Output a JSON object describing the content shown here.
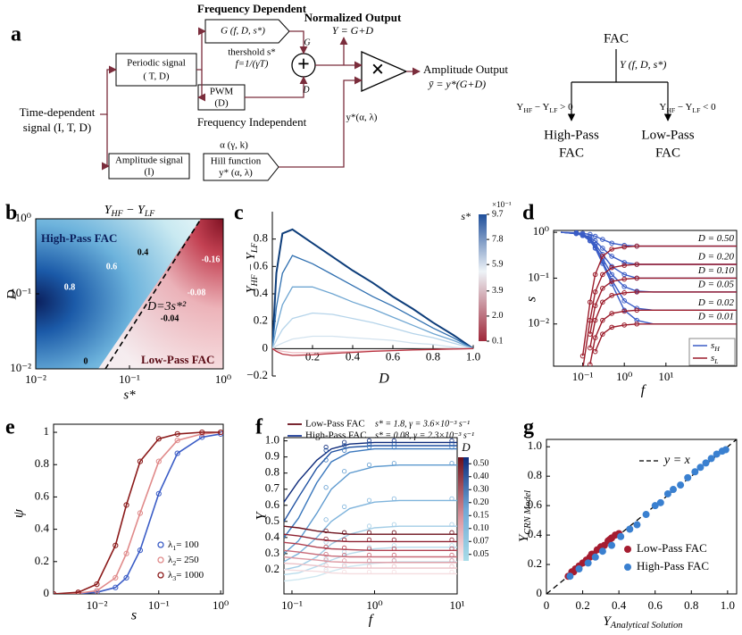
{
  "diagram": {
    "labels": [
      "a",
      "Frequency Dependent",
      "Normalized Output",
      "Y = G+D",
      "G (f, D, s*)",
      "thershold s*",
      "f=1/(γT)",
      "G",
      "Periodic signal",
      "( T, D)",
      "PWM",
      "(D)",
      "Frequency Independent",
      "D",
      "Time-dependent",
      "signal (I, T, D)",
      "Amplitude signal",
      "(I)",
      "α (γ, k)",
      "Hill function",
      "y* (α, λ)",
      "y*(α, λ)",
      "Amplitude Output",
      "ȳ = y*(G+D)",
      "+",
      "×",
      "FAC",
      "Y (f, D, s*)",
      {
        "parts": [
          "Y",
          "HF",
          " − Y",
          "LF",
          " > 0"
        ]
      },
      {
        "parts": [
          "Y",
          "HF",
          " − Y",
          "LF",
          " < 0"
        ]
      },
      "High-Pass",
      "FAC",
      "Low-Pass",
      "FAC"
    ]
  },
  "chart_data": [
    {
      "type": "contour",
      "panel": "b",
      "title": {
        "parts": [
          "Y",
          "HF",
          " − Y",
          "LF"
        ]
      },
      "x_label": "s*",
      "y_label": "D",
      "log_x": true,
      "log_y": true,
      "xlim": [
        0.01,
        1
      ],
      "ylim": [
        0.01,
        1
      ],
      "xticks": [
        {
          "value": 0.01,
          "label": "10⁻²"
        },
        {
          "value": 0.1,
          "label": "10⁻¹"
        },
        {
          "value": 1,
          "label": "10⁰"
        }
      ],
      "yticks": [
        {
          "value": 0.01,
          "label": "10⁻²"
        },
        {
          "value": 0.1,
          "label": "10⁻¹"
        },
        {
          "value": 1,
          "label": "10⁰"
        }
      ],
      "contour_labels": [
        0.4,
        0.6,
        0.8,
        0,
        -0.04,
        -0.08,
        -0.16
      ],
      "annotations": [
        "High-Pass FAC",
        "Low-Pass FAC",
        "D=3s*²"
      ]
    },
    {
      "type": "line",
      "panel": "c",
      "x_label": "D",
      "y_label": {
        "parts": [
          "Y",
          "HF",
          " − Y",
          "LF"
        ]
      },
      "xlim": [
        0,
        1
      ],
      "ylim": [
        -0.2,
        1
      ],
      "xticks": [
        0.2,
        0.4,
        0.6,
        0.8,
        {
          "value": 1,
          "label": "1.0"
        }
      ],
      "yticks": [
        {
          "value": -0.2,
          "label": "−0.2"
        },
        0,
        0.2,
        0.4,
        0.6,
        0.8
      ],
      "colorbar": {
        "label": "s*",
        "exponent": "×10⁻¹",
        "clim": [
          0.1,
          9.7
        ],
        "ticks": [
          0.1,
          {
            "value": 2,
            "label": "2.0"
          },
          3.9,
          5.9,
          7.8,
          9.7
        ]
      },
      "x": [
        0,
        0.02,
        0.05,
        0.1,
        0.2,
        0.3,
        0.4,
        0.5,
        0.6,
        0.7,
        0.8,
        0.9,
        1
      ],
      "series": [
        {
          "color": "#0d3d7a",
          "values": [
            0,
            0.55,
            0.84,
            0.87,
            0.77,
            0.67,
            0.57,
            0.48,
            0.38,
            0.29,
            0.19,
            0.1,
            0
          ]
        },
        {
          "color": "#2f6fb0",
          "values": [
            0,
            0.3,
            0.55,
            0.68,
            0.62,
            0.54,
            0.46,
            0.38,
            0.31,
            0.23,
            0.15,
            0.08,
            0
          ]
        },
        {
          "color": "#6fa6d2",
          "values": [
            0,
            0.15,
            0.32,
            0.45,
            0.45,
            0.4,
            0.34,
            0.29,
            0.23,
            0.17,
            0.11,
            0.06,
            0
          ]
        },
        {
          "color": "#b5d4ea",
          "values": [
            0,
            0.06,
            0.14,
            0.22,
            0.26,
            0.25,
            0.22,
            0.19,
            0.15,
            0.11,
            0.08,
            0.04,
            0
          ]
        },
        {
          "color": "#d3e3ef",
          "values": [
            0,
            0.02,
            0.04,
            0.07,
            0.09,
            0.09,
            0.08,
            0.07,
            0.06,
            0.04,
            0.03,
            0.01,
            0
          ]
        },
        {
          "color": "#efbcc2",
          "values": [
            0,
            -0.01,
            -0.02,
            -0.03,
            -0.03,
            -0.025,
            -0.02,
            -0.015,
            -0.012,
            -0.008,
            -0.005,
            -0.002,
            0
          ]
        },
        {
          "color": "#b8323f",
          "values": [
            0,
            -0.02,
            -0.04,
            -0.05,
            -0.045,
            -0.035,
            -0.028,
            -0.02,
            -0.015,
            -0.01,
            -0.006,
            -0.003,
            0
          ]
        }
      ]
    },
    {
      "type": "line",
      "panel": "d",
      "x_label": "f",
      "y_label": "s",
      "log_x": true,
      "log_y": true,
      "xlim": [
        0.02,
        500
      ],
      "ylim": [
        0.0012,
        1.1
      ],
      "xticks": [
        {
          "value": 0.1,
          "label": "10⁻¹"
        },
        {
          "value": 1,
          "label": "10⁰"
        },
        {
          "value": 10,
          "label": "10¹"
        }
      ],
      "yticks": [
        {
          "value": 0.01,
          "label": "10⁻²"
        },
        {
          "value": 0.1,
          "label": "10⁻¹"
        },
        {
          "value": 1,
          "label": "10⁰"
        }
      ],
      "legend": "lower right",
      "x": [
        0.03,
        0.07,
        0.1,
        0.15,
        0.2,
        0.3,
        0.5,
        1,
        2,
        5,
        20,
        500
      ],
      "curve_labels": [
        "D = 0.50",
        "D = 0.20",
        "D = 0.10",
        "D = 0.05",
        "D = 0.02",
        "D = 0.01"
      ],
      "series": [
        {
          "name": {
            "parts": [
              "s",
              "H"
            ]
          },
          "color": "#3a5cc6",
          "curves": [
            [
              1,
              0.98,
              0.95,
              0.9,
              0.82,
              0.7,
              0.58,
              0.52,
              0.5,
              0.5,
              0.5,
              0.5
            ],
            [
              1,
              0.96,
              0.9,
              0.78,
              0.65,
              0.45,
              0.3,
              0.22,
              0.2,
              0.2,
              0.2,
              0.2
            ],
            [
              1,
              0.95,
              0.88,
              0.72,
              0.55,
              0.33,
              0.18,
              0.12,
              0.1,
              0.1,
              0.1,
              0.1
            ],
            [
              1,
              0.94,
              0.86,
              0.68,
              0.5,
              0.27,
              0.12,
              0.065,
              0.052,
              0.05,
              0.05,
              0.05
            ],
            [
              1,
              0.94,
              0.85,
              0.66,
              0.46,
              0.23,
              0.09,
              0.032,
              0.022,
              0.02,
              0.02,
              0.02
            ],
            [
              1,
              0.94,
              0.85,
              0.65,
              0.45,
              0.21,
              0.075,
              0.02,
              0.012,
              0.01,
              0.01,
              0.01
            ]
          ]
        },
        {
          "name": {
            "parts": [
              "s",
              "L"
            ]
          },
          "color": "#9b1b2a",
          "curves": [
            [
              null,
              null,
              0.002,
              0.03,
              0.12,
              0.3,
              0.43,
              0.48,
              0.5,
              0.5,
              0.5,
              0.5
            ],
            [
              null,
              null,
              0.001,
              0.012,
              0.05,
              0.12,
              0.17,
              0.19,
              0.2,
              0.2,
              0.2,
              0.2
            ],
            [
              null,
              null,
              null,
              0.006,
              0.025,
              0.06,
              0.085,
              0.095,
              0.1,
              0.1,
              0.1,
              0.1
            ],
            [
              null,
              null,
              null,
              0.003,
              0.012,
              0.03,
              0.042,
              0.048,
              0.05,
              0.05,
              0.05,
              0.05
            ],
            [
              null,
              null,
              null,
              0.0013,
              0.005,
              0.012,
              0.017,
              0.019,
              0.02,
              0.02,
              0.02,
              0.02
            ],
            [
              null,
              null,
              null,
              null,
              0.0025,
              0.006,
              0.0085,
              0.0095,
              0.01,
              0.01,
              0.01,
              0.01
            ]
          ]
        }
      ]
    },
    {
      "type": "line",
      "panel": "e",
      "x_label": "s",
      "y_label": "ψ",
      "log_x": true,
      "xlim": [
        0.002,
        1.1
      ],
      "ylim": [
        0,
        1.05
      ],
      "xticks": [
        {
          "value": 0.01,
          "label": "10⁻²"
        },
        {
          "value": 0.1,
          "label": "10⁻¹"
        },
        {
          "value": 1,
          "label": "10⁰"
        }
      ],
      "yticks": [
        0,
        0.2,
        0.4,
        0.6,
        0.8,
        1
      ],
      "legend": "lower right",
      "markers": "circle",
      "x": [
        0.002,
        0.005,
        0.01,
        0.02,
        0.03,
        0.05,
        0.1,
        0.2,
        0.5,
        1
      ],
      "series": [
        {
          "name": {
            "parts": [
              "λ",
              "1",
              "= 100"
            ]
          },
          "color": "#3a5cc6",
          "values": [
            0,
            0.002,
            0.01,
            0.04,
            0.1,
            0.27,
            0.62,
            0.87,
            0.97,
            0.99
          ]
        },
        {
          "name": {
            "parts": [
              "λ",
              "2",
              "= 250"
            ]
          },
          "color": "#e08a8a",
          "values": [
            0,
            0.004,
            0.02,
            0.1,
            0.25,
            0.5,
            0.82,
            0.95,
            0.99,
            1
          ]
        },
        {
          "name": {
            "parts": [
              "λ",
              "3",
              "= 1000"
            ]
          },
          "color": "#8b1a1a",
          "values": [
            0,
            0.01,
            0.06,
            0.3,
            0.55,
            0.82,
            0.96,
            0.99,
            1,
            1
          ]
        }
      ]
    },
    {
      "type": "line",
      "panel": "f",
      "x_label": "f",
      "y_label": "Y",
      "log_x": true,
      "xlim": [
        0.08,
        10
      ],
      "ylim": [
        0.05,
        1.02
      ],
      "xticks": [
        {
          "value": 0.1,
          "label": "10⁻¹"
        },
        {
          "value": 1,
          "label": "10⁰"
        },
        {
          "value": 10,
          "label": "10¹"
        }
      ],
      "yticks": [
        0.2,
        0.3,
        0.4,
        0.5,
        0.6,
        0.7,
        0.8,
        0.9,
        {
          "value": 1,
          "label": "1.0"
        }
      ],
      "legend": [
        {
          "label": "Low-Pass FAC",
          "params": "s* = 1.8,  γ = 3.6×10⁻³ s⁻¹",
          "color": "#6b0f1a"
        },
        {
          "label": "High-Pass FAC",
          "params": "s* = 0.08,  γ = 2.3×10⁻³ s⁻¹",
          "color": "#1f3f9a"
        }
      ],
      "colorbar": {
        "label": "D",
        "ticks": [
          {
            "value": 0.5,
            "label": "0.50"
          },
          {
            "value": 0.4,
            "label": "0.40"
          },
          {
            "value": 0.3,
            "label": "0.30"
          },
          {
            "value": 0.2,
            "label": "0.20"
          },
          0.15,
          {
            "value": 0.1,
            "label": "0.10"
          },
          0.07,
          0.05
        ]
      },
      "x": [
        0.08,
        0.12,
        0.2,
        0.3,
        0.5,
        1,
        2,
        10
      ],
      "series": [
        {
          "color": "#0d2a7a",
          "values": [
            0.62,
            0.75,
            0.88,
            0.95,
            0.98,
            0.99,
            0.99,
            0.99
          ]
        },
        {
          "color": "#1d4fa0",
          "values": [
            0.5,
            0.65,
            0.83,
            0.93,
            0.96,
            0.97,
            0.97,
            0.97
          ]
        },
        {
          "color": "#3b78bd",
          "values": [
            0.4,
            0.52,
            0.74,
            0.87,
            0.93,
            0.95,
            0.95,
            0.95
          ]
        },
        {
          "color": "#5e9acf",
          "values": [
            0.3,
            0.38,
            0.55,
            0.7,
            0.8,
            0.84,
            0.85,
            0.85
          ]
        },
        {
          "color": "#7fb4dc",
          "values": [
            0.25,
            0.3,
            0.4,
            0.5,
            0.58,
            0.62,
            0.63,
            0.63
          ]
        },
        {
          "color": "#a3cde6",
          "values": [
            0.2,
            0.22,
            0.28,
            0.36,
            0.42,
            0.46,
            0.47,
            0.47
          ]
        },
        {
          "color": "#b9dcec",
          "values": [
            0.17,
            0.18,
            0.22,
            0.26,
            0.3,
            0.33,
            0.34,
            0.34
          ]
        },
        {
          "color": "#cfe8f1",
          "values": [
            0.13,
            0.14,
            0.16,
            0.19,
            0.22,
            0.24,
            0.25,
            0.25
          ]
        },
        {
          "color": "#6b0f1a",
          "values": [
            0.47,
            0.46,
            0.44,
            0.43,
            0.42,
            0.42,
            0.42,
            0.42
          ]
        },
        {
          "color": "#8d2030",
          "values": [
            0.42,
            0.41,
            0.39,
            0.38,
            0.375,
            0.375,
            0.375,
            0.375
          ]
        },
        {
          "color": "#b04050",
          "values": [
            0.37,
            0.36,
            0.34,
            0.33,
            0.325,
            0.32,
            0.32,
            0.32
          ]
        },
        {
          "color": "#c86a78",
          "values": [
            0.32,
            0.31,
            0.295,
            0.285,
            0.28,
            0.28,
            0.28,
            0.28
          ]
        },
        {
          "color": "#dc98a2",
          "values": [
            0.28,
            0.27,
            0.26,
            0.25,
            0.245,
            0.245,
            0.245,
            0.245
          ]
        },
        {
          "color": "#ecc2c8",
          "values": [
            0.24,
            0.235,
            0.225,
            0.215,
            0.21,
            0.21,
            0.21,
            0.21
          ]
        },
        {
          "color": "#f5dde0",
          "values": [
            0.2,
            0.195,
            0.19,
            0.18,
            0.175,
            0.175,
            0.175,
            0.175
          ]
        }
      ]
    },
    {
      "type": "scatter",
      "panel": "g",
      "x_label": {
        "parts": [
          "Y",
          "Analytical Solution"
        ]
      },
      "y_label": {
        "parts": [
          "Y",
          "CRN Model"
        ]
      },
      "xlim": [
        0,
        1.05
      ],
      "ylim": [
        0,
        1.05
      ],
      "xticks": [
        0,
        0.2,
        0.4,
        0.6,
        0.8,
        {
          "value": 1,
          "label": "1.0"
        }
      ],
      "yticks": [
        0,
        0.2,
        0.4,
        0.6,
        0.8,
        {
          "value": 1,
          "label": "1.0"
        }
      ],
      "reference_line": "y = x",
      "legend": "lower right",
      "series": [
        {
          "name": "Low-Pass FAC",
          "color": "#a51c30",
          "x": [
            0.12,
            0.14,
            0.15,
            0.16,
            0.18,
            0.2,
            0.22,
            0.24,
            0.25,
            0.26,
            0.28,
            0.3,
            0.32,
            0.34,
            0.35,
            0.36,
            0.38,
            0.4
          ],
          "values": [
            0.12,
            0.15,
            0.15,
            0.17,
            0.19,
            0.21,
            0.23,
            0.25,
            0.27,
            0.27,
            0.3,
            0.32,
            0.33,
            0.36,
            0.37,
            0.38,
            0.4,
            0.41
          ]
        },
        {
          "name": "High-Pass FAC",
          "color": "#3a80d0",
          "x": [
            0.13,
            0.18,
            0.23,
            0.27,
            0.31,
            0.36,
            0.41,
            0.46,
            0.5,
            0.55,
            0.6,
            0.63,
            0.67,
            0.7,
            0.74,
            0.78,
            0.82,
            0.85,
            0.88,
            0.91,
            0.94,
            0.97,
            0.99
          ],
          "values": [
            0.12,
            0.17,
            0.21,
            0.25,
            0.29,
            0.33,
            0.39,
            0.44,
            0.47,
            0.54,
            0.6,
            0.62,
            0.68,
            0.71,
            0.74,
            0.79,
            0.83,
            0.86,
            0.89,
            0.92,
            0.95,
            0.97,
            0.98
          ]
        }
      ]
    }
  ]
}
